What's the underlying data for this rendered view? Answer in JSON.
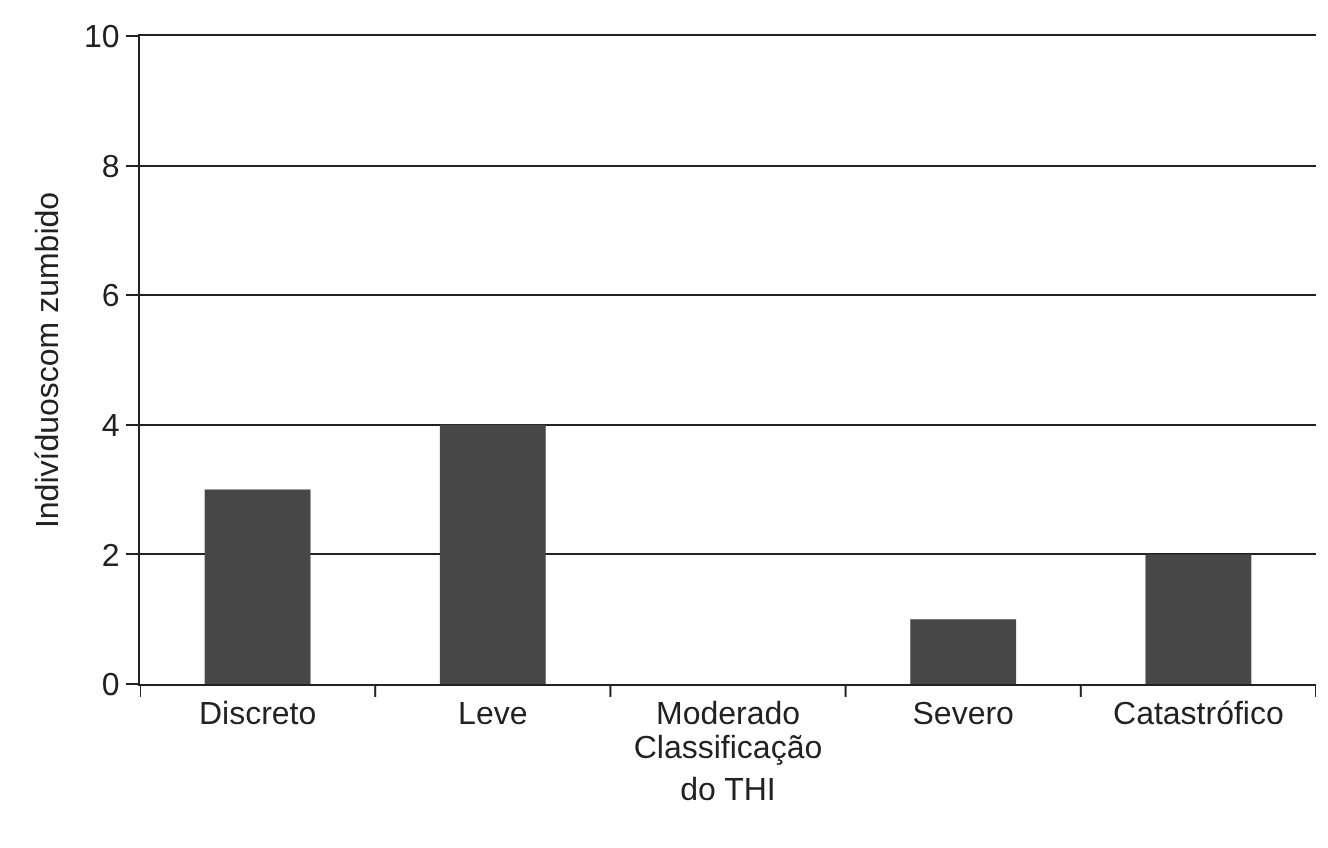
{
  "chart_data": {
    "type": "bar",
    "categories": [
      "Discreto",
      "Leve",
      "Moderado",
      "Severo",
      "Catastrófico"
    ],
    "values": [
      3,
      4,
      0,
      1,
      2
    ],
    "color": "#474747",
    "xlabel": "Classificação do THI",
    "ylabel": "Indivíduoscom zumbido",
    "ylim": [
      0,
      10
    ],
    "yticks": [
      0,
      2,
      4,
      6,
      8,
      10
    ],
    "grid": "y"
  }
}
